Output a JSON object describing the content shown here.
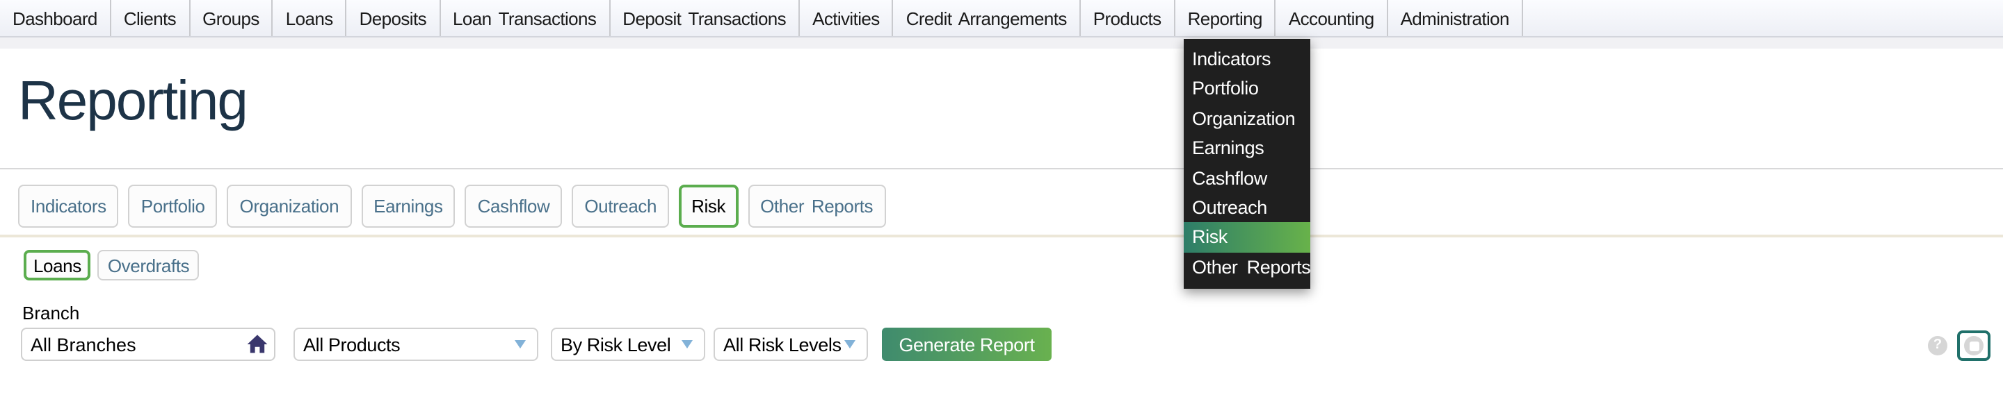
{
  "nav": {
    "items": [
      "Dashboard",
      "Clients",
      "Groups",
      "Loans",
      "Deposits",
      "Loan Transactions",
      "Deposit Transactions",
      "Activities",
      "Credit Arrangements",
      "Products",
      "Reporting",
      "Accounting",
      "Administration"
    ],
    "active": "Reporting"
  },
  "reporting_menu": {
    "items": [
      "Indicators",
      "Portfolio",
      "Organization",
      "Earnings",
      "Cashflow",
      "Outreach",
      "Risk",
      "Other Reports"
    ],
    "active": "Risk"
  },
  "page": {
    "title": "Reporting"
  },
  "report_tabs": {
    "items": [
      "Indicators",
      "Portfolio",
      "Organization",
      "Earnings",
      "Cashflow",
      "Outreach",
      "Risk",
      "Other Reports"
    ],
    "active": "Risk"
  },
  "risk_subtabs": {
    "items": [
      "Loans",
      "Overdrafts"
    ],
    "active": "Loans"
  },
  "filters": {
    "branch_label": "Branch",
    "branch_value": "All Branches",
    "branch_icon": "home-icon",
    "product_value": "All Products",
    "view_value": "By Risk Level",
    "level_value": "All Risk Levels",
    "generate_label": "Generate Report"
  },
  "floating": {
    "help_label": "?",
    "help_icon": "help-question-icon",
    "messenger_icon": "messenger-icon"
  },
  "colors": {
    "accent_green": "#5bad4e",
    "title_color": "#1d3347",
    "tab_text": "#49708a",
    "menu_bg": "#1f1f1f",
    "menu_grad_start": "#2d7d69",
    "menu_grad_end": "#68b24a",
    "btn_grad_start": "#3f8b6e",
    "btn_grad_end": "#69b14f",
    "home_icon": "#3a376d",
    "caret_blue": "#82b2d8",
    "icon_circle": "#d6d6d6",
    "messenger_border": "#20706a"
  }
}
